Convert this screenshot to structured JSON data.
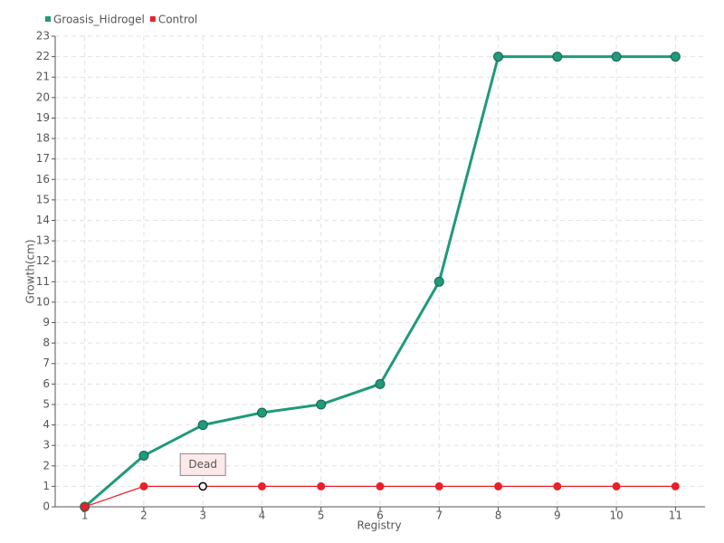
{
  "chart_data": {
    "type": "line",
    "x_label": "Registry",
    "y_label": "Growth(cm)",
    "categories": [
      "1",
      "2",
      "3",
      "4",
      "5",
      "6",
      "7",
      "8",
      "9",
      "10",
      "11"
    ],
    "series": [
      {
        "name": "Groasis_Hidrogel",
        "color": "#1f9a7a",
        "values": [
          0,
          2.5,
          4,
          4.6,
          5,
          6,
          11,
          22,
          22,
          22,
          22
        ]
      },
      {
        "name": "Control",
        "color": "#e8202a",
        "values": [
          0,
          1,
          1,
          1,
          1,
          1,
          1,
          1,
          1,
          1,
          1
        ]
      }
    ],
    "annotations": [
      {
        "text": "Dead",
        "x": "3",
        "y": 1
      }
    ],
    "ylim": [
      0,
      23
    ],
    "yticks": [
      0,
      1,
      2,
      3,
      4,
      5,
      6,
      7,
      8,
      9,
      10,
      11,
      12,
      13,
      14,
      15,
      16,
      17,
      18,
      19,
      20,
      21,
      22,
      23
    ],
    "grid": true,
    "legend": "top-left"
  }
}
